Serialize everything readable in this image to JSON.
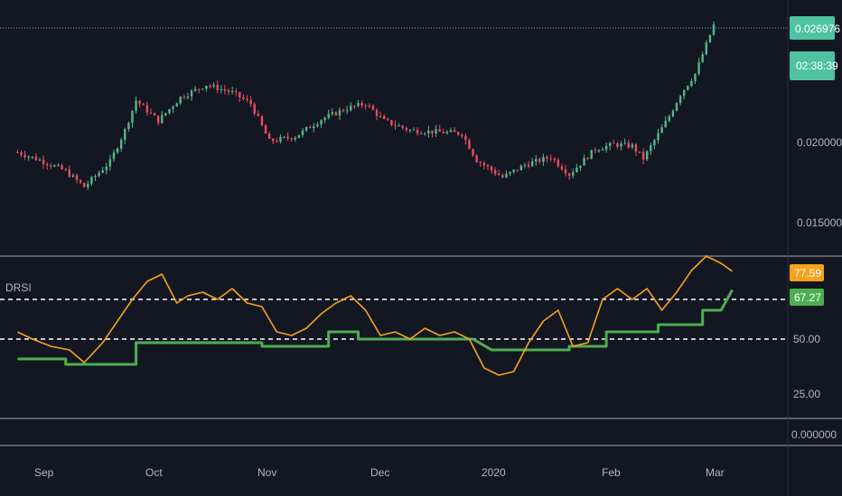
{
  "indicator": {
    "name": "DRSI"
  },
  "price_axis": {
    "ticks": [
      "0.020000",
      "0.015000"
    ],
    "last_price": "0.026976",
    "countdown": "02:38:39"
  },
  "indicator_axis": {
    "ticks": [
      "50.00",
      "25.00",
      "0.000000"
    ],
    "orange_last": "77.59",
    "green_last": "67.27"
  },
  "time_axis": [
    "Sep",
    "Oct",
    "Nov",
    "Dec",
    "2020",
    "Feb",
    "Mar"
  ],
  "colors": {
    "background": "#131722",
    "up": "#26a69a",
    "up_light": "#53b987",
    "down": "#ef5350",
    "down_light": "#eb4d5c",
    "orange": "#f7a21b",
    "green": "#4caf50",
    "price_line": "#4fc3a1",
    "separator": "#3a3e48",
    "dashed": "#ffffff"
  },
  "chart_data": [
    {
      "type": "candlestick",
      "title": "",
      "x_range": [
        "2019-08-26",
        "2020-03-30"
      ],
      "ylim": [
        0.0123,
        0.0285
      ],
      "y_ticks": [
        0.015,
        0.02
      ],
      "last_value": 0.026976,
      "close_path": [
        [
          "2019-08-26",
          0.0188
        ],
        [
          "2019-09-01",
          0.0183
        ],
        [
          "2019-09-08",
          0.0176
        ],
        [
          "2019-09-13",
          0.0166
        ],
        [
          "2019-09-20",
          0.0182
        ],
        [
          "2019-09-24",
          0.0202
        ],
        [
          "2019-09-27",
          0.0221
        ],
        [
          "2019-10-03",
          0.0208
        ],
        [
          "2019-10-09",
          0.0223
        ],
        [
          "2019-10-16",
          0.0231
        ],
        [
          "2019-10-23",
          0.0226
        ],
        [
          "2019-10-28",
          0.0219
        ],
        [
          "2019-11-02",
          0.0195
        ],
        [
          "2019-11-09",
          0.0198
        ],
        [
          "2019-11-16",
          0.0209
        ],
        [
          "2019-11-23",
          0.0216
        ],
        [
          "2019-11-28",
          0.0219
        ],
        [
          "2019-12-03",
          0.0208
        ],
        [
          "2019-12-10",
          0.0202
        ],
        [
          "2019-12-17",
          0.0201
        ],
        [
          "2019-12-24",
          0.02
        ],
        [
          "2019-12-28",
          0.0183
        ],
        [
          "2020-01-04",
          0.0172
        ],
        [
          "2020-01-10",
          0.018
        ],
        [
          "2020-01-17",
          0.0185
        ],
        [
          "2020-01-22",
          0.0174
        ],
        [
          "2020-01-29",
          0.019
        ],
        [
          "2020-02-03",
          0.0193
        ],
        [
          "2020-02-08",
          0.0192
        ],
        [
          "2020-02-11",
          0.0184
        ],
        [
          "2020-02-18",
          0.0211
        ],
        [
          "2020-02-21",
          0.0225
        ],
        [
          "2020-02-25",
          0.0238
        ],
        [
          "2020-03-01",
          0.0269
        ]
      ]
    },
    {
      "type": "line",
      "title": "DRSI",
      "ylim": [
        -3,
        85
      ],
      "y_ticks": [
        0,
        25,
        50
      ],
      "reference_lines": [
        40,
        62
      ],
      "series": [
        {
          "name": "",
          "color": "#f7a21b",
          "last": 77.59,
          "points": [
            [
              "2019-08-26",
              44
            ],
            [
              "2019-08-30",
              40
            ],
            [
              "2019-09-04",
              36
            ],
            [
              "2019-09-09",
              34
            ],
            [
              "2019-09-13",
              27
            ],
            [
              "2019-09-18",
              38
            ],
            [
              "2019-09-22",
              50
            ],
            [
              "2019-09-26",
              62
            ],
            [
              "2019-09-30",
              72
            ],
            [
              "2019-10-04",
              76
            ],
            [
              "2019-10-08",
              60
            ],
            [
              "2019-10-11",
              64
            ],
            [
              "2019-10-15",
              66
            ],
            [
              "2019-10-19",
              62
            ],
            [
              "2019-10-23",
              68
            ],
            [
              "2019-10-27",
              60
            ],
            [
              "2019-10-31",
              58
            ],
            [
              "2019-11-04",
              44
            ],
            [
              "2019-11-08",
              42
            ],
            [
              "2019-11-12",
              46
            ],
            [
              "2019-11-16",
              54
            ],
            [
              "2019-11-20",
              60
            ],
            [
              "2019-11-24",
              64
            ],
            [
              "2019-11-28",
              56
            ],
            [
              "2019-12-02",
              42
            ],
            [
              "2019-12-06",
              44
            ],
            [
              "2019-12-10",
              40
            ],
            [
              "2019-12-14",
              46
            ],
            [
              "2019-12-18",
              42
            ],
            [
              "2019-12-22",
              44
            ],
            [
              "2019-12-26",
              40
            ],
            [
              "2019-12-30",
              24
            ],
            [
              "2020-01-03",
              20
            ],
            [
              "2020-01-07",
              22
            ],
            [
              "2020-01-11",
              38
            ],
            [
              "2020-01-15",
              50
            ],
            [
              "2020-01-19",
              56
            ],
            [
              "2020-01-23",
              36
            ],
            [
              "2020-01-27",
              38
            ],
            [
              "2020-01-31",
              62
            ],
            [
              "2020-02-04",
              68
            ],
            [
              "2020-02-08",
              62
            ],
            [
              "2020-02-12",
              68
            ],
            [
              "2020-02-16",
              56
            ],
            [
              "2020-02-20",
              66
            ],
            [
              "2020-02-24",
              78
            ],
            [
              "2020-02-28",
              86
            ],
            [
              "2020-03-03",
              82
            ],
            [
              "2020-03-06",
              77.59
            ]
          ]
        },
        {
          "name": "",
          "color": "#4caf50",
          "last": 67.27,
          "points": [
            [
              "2019-08-26",
              29
            ],
            [
              "2019-09-08",
              29
            ],
            [
              "2019-09-08",
              26
            ],
            [
              "2019-09-27",
              26
            ],
            [
              "2019-09-27",
              38
            ],
            [
              "2019-10-31",
              38
            ],
            [
              "2019-10-31",
              36
            ],
            [
              "2019-11-18",
              36
            ],
            [
              "2019-11-18",
              44
            ],
            [
              "2019-11-26",
              44
            ],
            [
              "2019-11-26",
              40
            ],
            [
              "2019-12-27",
              40
            ],
            [
              "2020-01-01",
              34
            ],
            [
              "2020-01-22",
              34
            ],
            [
              "2020-01-22",
              36
            ],
            [
              "2020-02-01",
              36
            ],
            [
              "2020-02-01",
              44
            ],
            [
              "2020-02-15",
              44
            ],
            [
              "2020-02-15",
              48
            ],
            [
              "2020-02-27",
              48
            ],
            [
              "2020-02-27",
              56
            ],
            [
              "2020-03-03",
              56
            ],
            [
              "2020-03-06",
              67.27
            ]
          ]
        }
      ]
    }
  ]
}
